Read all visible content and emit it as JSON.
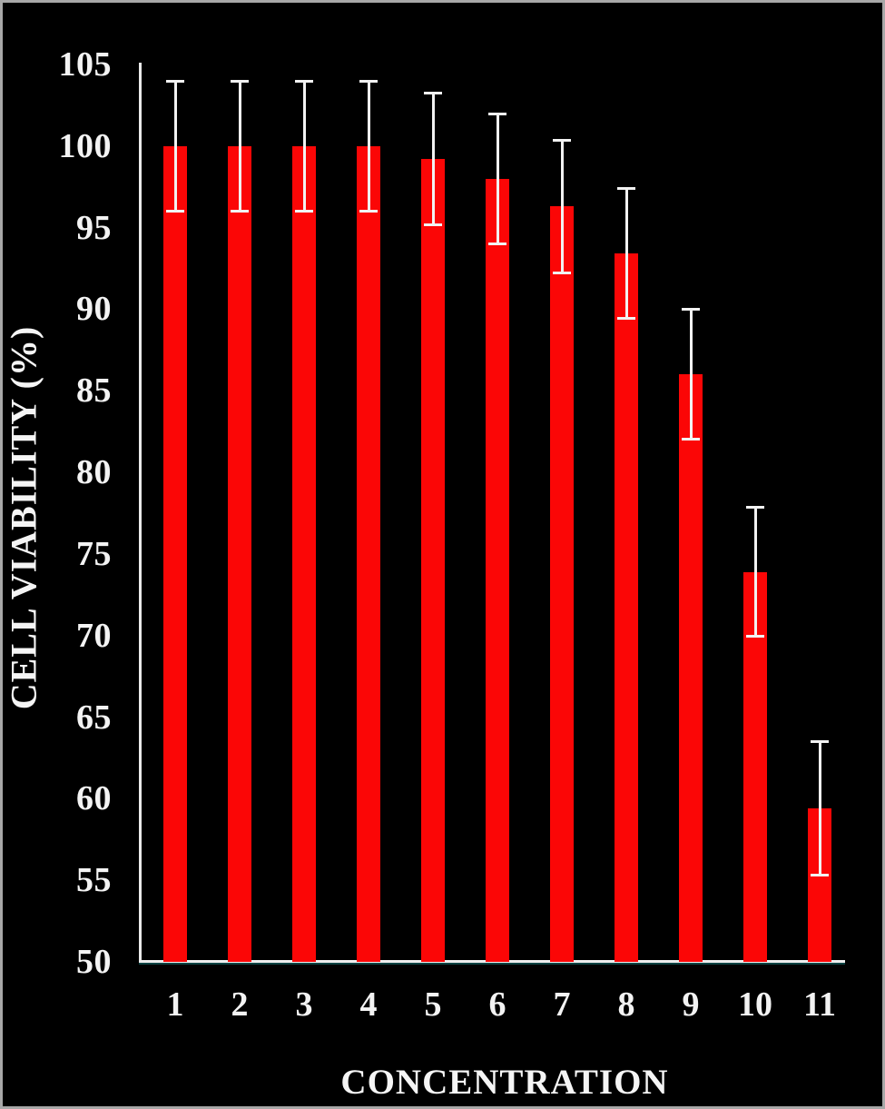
{
  "chart_data": {
    "type": "bar",
    "title": "",
    "xlabel": "CONCENTRATION",
    "ylabel": "CELL VIABILITY (%)",
    "categories": [
      "1",
      "2",
      "3",
      "4",
      "5",
      "6",
      "7",
      "8",
      "9",
      "10",
      "11"
    ],
    "values": [
      100,
      100,
      100,
      100,
      99.2,
      98,
      96.3,
      93.4,
      86,
      73.9,
      59.4
    ],
    "error_bars": [
      4,
      4,
      4,
      4,
      4.05,
      4,
      4.1,
      4,
      4,
      4,
      4.1
    ],
    "ylim": [
      50,
      105
    ],
    "ytick_step": 5,
    "yticks": [
      105,
      100,
      95,
      90,
      85,
      80,
      75,
      70,
      65,
      60,
      55,
      50
    ],
    "grid": false,
    "legend": false,
    "colors": {
      "bar": "#fb0606",
      "error": "#f2f2f2",
      "axis": "#e9e9e9",
      "background": "#000000",
      "text": "#f3f3f3",
      "frame_border": "#a8a8a8"
    }
  }
}
